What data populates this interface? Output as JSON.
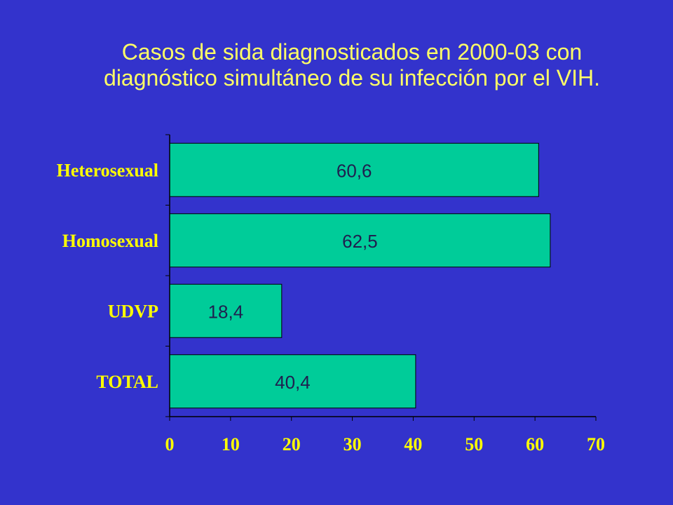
{
  "colors": {
    "background": "#3333CC",
    "title": "#FFFF66",
    "axis_labels": "#FFFF00",
    "bar_fill": "#00CC99",
    "bar_stroke": "#000000",
    "axis_line": "#000000",
    "data_label": "#1F1F4F"
  },
  "chart_data": {
    "type": "bar",
    "orientation": "horizontal",
    "title_lines": [
      "Casos de sida diagnosticados en 2000-03 con",
      "diagnóstico simultáneo de su infección por el VIH."
    ],
    "categories": [
      "Heterosexual",
      "Homosexual",
      "UDVP",
      "TOTAL"
    ],
    "values": [
      60.6,
      62.5,
      18.4,
      40.4
    ],
    "value_labels": [
      "60,6",
      "62,5",
      "18,4",
      "40,4"
    ],
    "xlim": [
      0,
      70
    ],
    "x_ticks": [
      0,
      10,
      20,
      30,
      40,
      50,
      60,
      70
    ],
    "grid": false,
    "legend": "none"
  }
}
